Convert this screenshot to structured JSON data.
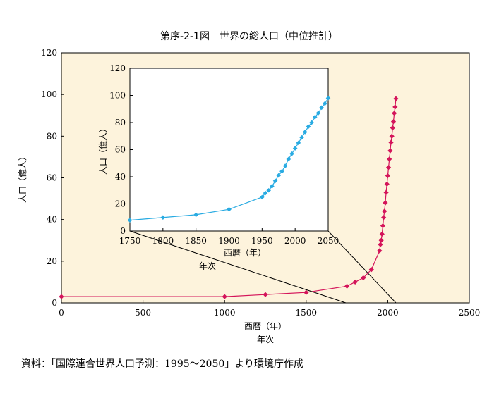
{
  "title": "第序-2-1図　世界の総人口（中位推計）",
  "source": "資料：「国際連合世界人口予測：1995～2050」より環境庁作成",
  "colors": {
    "background": "#fdf3dc",
    "main_series": "#d4145a",
    "inset_series": "#29abe2",
    "inset_background": "#ffffff"
  },
  "chart_data": [
    {
      "type": "line",
      "panel": "main",
      "xlabel": "西暦（年）",
      "xlabel2": "年次",
      "ylabel": "人口（億人）",
      "xlim": [
        0,
        2500
      ],
      "ylim": [
        0,
        120
      ],
      "xticks": [
        "0",
        "500",
        "1000",
        "1500",
        "2000",
        "2500"
      ],
      "yticks": [
        "0",
        "20",
        "40",
        "60",
        "80",
        "100",
        "120"
      ],
      "series": [
        {
          "x": [
            0,
            1000,
            1250,
            1500,
            1750,
            1800,
            1850,
            1900,
            1950,
            1955,
            1960,
            1965,
            1970,
            1975,
            1980,
            1985,
            1990,
            1995,
            2000,
            2005,
            2010,
            2015,
            2020,
            2025,
            2030,
            2035,
            2040,
            2045,
            2050
          ],
          "y": [
            3,
            3,
            4,
            5,
            8,
            10,
            12,
            16,
            25,
            28,
            30,
            33,
            37,
            41,
            44,
            48,
            53,
            57,
            61,
            65,
            69,
            73,
            77,
            80,
            84,
            87,
            91,
            94,
            98
          ]
        }
      ]
    },
    {
      "type": "line",
      "panel": "inset",
      "xlabel": "西暦（年）",
      "xlabel2": "年次",
      "ylabel": "人口（億人）",
      "xlim": [
        1750,
        2050
      ],
      "ylim": [
        0,
        120
      ],
      "xticks": [
        "1750",
        "1800",
        "1850",
        "1900",
        "1950",
        "2000",
        "2050"
      ],
      "yticks": [
        "0",
        "20",
        "40",
        "60",
        "80",
        "100",
        "120"
      ],
      "series": [
        {
          "x": [
            1750,
            1800,
            1850,
            1900,
            1950,
            1955,
            1960,
            1965,
            1970,
            1975,
            1980,
            1985,
            1990,
            1995,
            2000,
            2005,
            2010,
            2015,
            2020,
            2025,
            2030,
            2035,
            2040,
            2045,
            2050
          ],
          "y": [
            8,
            10,
            12,
            16,
            25,
            28,
            30,
            33,
            37,
            41,
            44,
            48,
            53,
            57,
            61,
            65,
            69,
            73,
            77,
            80,
            84,
            87,
            91,
            94,
            98
          ]
        }
      ]
    }
  ]
}
